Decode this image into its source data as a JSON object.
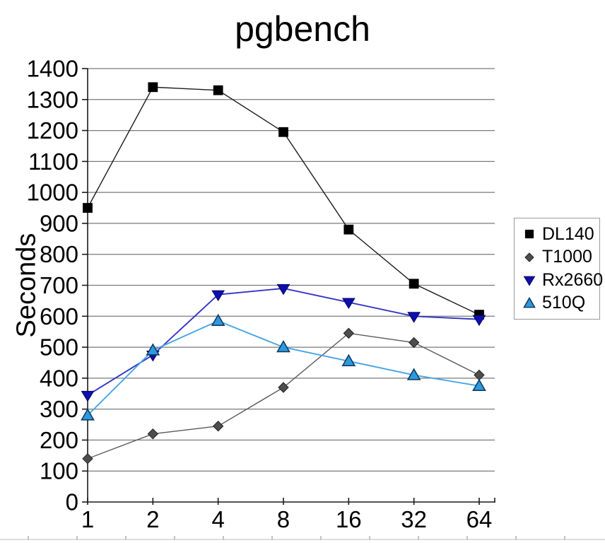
{
  "chart_data": {
    "type": "line",
    "title": "pgbench",
    "ylabel": "Seconds",
    "xlabel": "",
    "categories": [
      "1",
      "2",
      "4",
      "8",
      "16",
      "32",
      "64"
    ],
    "ylim": [
      0,
      1400
    ],
    "ytick_step": 100,
    "grid": "horizontal",
    "legend_position": "right",
    "colors": {
      "gridline": "#7a7a7a",
      "axis": "#1a1a1a",
      "background": "#ffffff",
      "legend_border": "#9a9a9a"
    },
    "series": [
      {
        "name": "DL140",
        "marker": "square",
        "line_color": "#1a1a1a",
        "marker_fill": "#000000",
        "marker_stroke": "#000000",
        "values": [
          950,
          1340,
          1330,
          1195,
          880,
          705,
          605
        ]
      },
      {
        "name": "T1000",
        "marker": "diamond",
        "line_color": "#5a5a5a",
        "marker_fill": "#4d4d4d",
        "marker_stroke": "#222222",
        "values": [
          140,
          220,
          245,
          370,
          545,
          515,
          410
        ]
      },
      {
        "name": "Rx2660",
        "marker": "triangle-down",
        "line_color": "#3435c6",
        "marker_fill": "#0f0fae",
        "marker_stroke": "#06065e",
        "values": [
          345,
          475,
          670,
          690,
          645,
          600,
          590
        ]
      },
      {
        "name": "510Q",
        "marker": "triangle-up",
        "line_color": "#46a5e8",
        "marker_fill": "#2d9ade",
        "marker_stroke": "#123a63",
        "values": [
          280,
          490,
          585,
          500,
          455,
          410,
          375
        ]
      }
    ]
  }
}
